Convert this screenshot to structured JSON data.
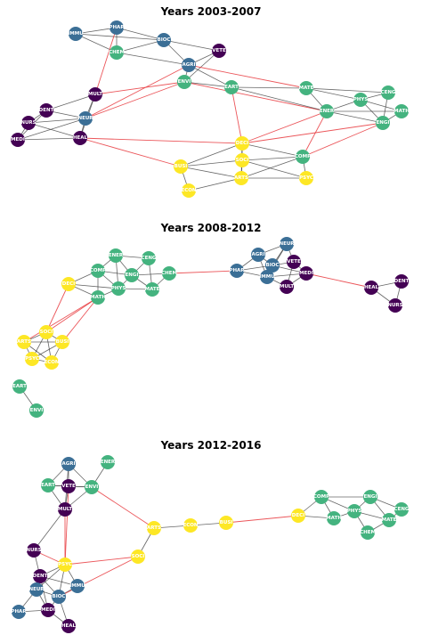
{
  "colors": {
    "field_group_a": "#44b37f",
    "field_group_b": "#fde725",
    "field_group_c": "#3b6f96",
    "field_group_d": "#440154",
    "edge_normal": "#333333",
    "edge_cross": "#e8383d"
  },
  "panels": [
    {
      "title": "Years 2003-2007",
      "nodes": [
        {
          "id": "IMMU",
          "group": "c"
        },
        {
          "id": "PHAR",
          "group": "c"
        },
        {
          "id": "BIOC",
          "group": "c"
        },
        {
          "id": "CHEM",
          "group": "a"
        },
        {
          "id": "VETE",
          "group": "d"
        },
        {
          "id": "AGRI",
          "group": "c"
        },
        {
          "id": "ENVI",
          "group": "a"
        },
        {
          "id": "EART",
          "group": "a"
        },
        {
          "id": "MULT",
          "group": "d"
        },
        {
          "id": "DENT",
          "group": "d"
        },
        {
          "id": "NURS",
          "group": "d"
        },
        {
          "id": "NEUR",
          "group": "c"
        },
        {
          "id": "MEDI",
          "group": "d"
        },
        {
          "id": "HEAL",
          "group": "d"
        },
        {
          "id": "MATE",
          "group": "a"
        },
        {
          "id": "CENG",
          "group": "a"
        },
        {
          "id": "PHYS",
          "group": "a"
        },
        {
          "id": "ENER",
          "group": "a"
        },
        {
          "id": "MATH",
          "group": "a"
        },
        {
          "id": "ENGI",
          "group": "a"
        },
        {
          "id": "DECI",
          "group": "b"
        },
        {
          "id": "COMP",
          "group": "a"
        },
        {
          "id": "SOCI",
          "group": "b"
        },
        {
          "id": "BUSI",
          "group": "b"
        },
        {
          "id": "ARTS",
          "group": "b"
        },
        {
          "id": "PSYC",
          "group": "b"
        },
        {
          "id": "ECON",
          "group": "b"
        }
      ],
      "edges": [
        [
          "IMMU",
          "PHAR",
          "n"
        ],
        [
          "IMMU",
          "BIOC",
          "n"
        ],
        [
          "IMMU",
          "CHEM",
          "n"
        ],
        [
          "PHAR",
          "BIOC",
          "n"
        ],
        [
          "PHAR",
          "CHEM",
          "n"
        ],
        [
          "BIOC",
          "CHEM",
          "n"
        ],
        [
          "BIOC",
          "VETE",
          "n"
        ],
        [
          "BIOC",
          "AGRI",
          "n"
        ],
        [
          "CHEM",
          "AGRI",
          "n"
        ],
        [
          "VETE",
          "AGRI",
          "n"
        ],
        [
          "AGRI",
          "ENVI",
          "n"
        ],
        [
          "VETE",
          "ENVI",
          "n"
        ],
        [
          "ENVI",
          "EART",
          "n"
        ],
        [
          "AGRI",
          "EART",
          "n"
        ],
        [
          "PHAR",
          "MULT",
          "x"
        ],
        [
          "MULT",
          "NEUR",
          "n"
        ],
        [
          "MULT",
          "DENT",
          "n"
        ],
        [
          "MULT",
          "HEAL",
          "n"
        ],
        [
          "DENT",
          "NURS",
          "n"
        ],
        [
          "DENT",
          "NEUR",
          "n"
        ],
        [
          "DENT",
          "MEDI",
          "n"
        ],
        [
          "NURS",
          "NEUR",
          "n"
        ],
        [
          "NURS",
          "MEDI",
          "n"
        ],
        [
          "NURS",
          "HEAL",
          "n"
        ],
        [
          "NEUR",
          "MEDI",
          "n"
        ],
        [
          "NEUR",
          "HEAL",
          "n"
        ],
        [
          "MEDI",
          "HEAL",
          "n"
        ],
        [
          "MULT",
          "ENVI",
          "x"
        ],
        [
          "NEUR",
          "ENVI",
          "x"
        ],
        [
          "NEUR",
          "AGRI",
          "x"
        ],
        [
          "EART",
          "MATE",
          "n"
        ],
        [
          "ENVI",
          "ENER",
          "x"
        ],
        [
          "AGRI",
          "MATE",
          "x"
        ],
        [
          "EART",
          "DECI",
          "x"
        ],
        [
          "EART",
          "ENER",
          "n"
        ],
        [
          "MATE",
          "PHYS",
          "n"
        ],
        [
          "MATE",
          "ENER",
          "n"
        ],
        [
          "MATE",
          "CENG",
          "n"
        ],
        [
          "CENG",
          "PHYS",
          "n"
        ],
        [
          "CENG",
          "ENGI",
          "n"
        ],
        [
          "PHYS",
          "ENER",
          "n"
        ],
        [
          "PHYS",
          "MATH",
          "n"
        ],
        [
          "PHYS",
          "ENGI",
          "n"
        ],
        [
          "ENER",
          "ENGI",
          "n"
        ],
        [
          "MATH",
          "ENGI",
          "n"
        ],
        [
          "ENER",
          "MATH",
          "n"
        ],
        [
          "HEAL",
          "DECI",
          "x"
        ],
        [
          "HEAL",
          "BUSI",
          "x"
        ],
        [
          "DECI",
          "SOCI",
          "n"
        ],
        [
          "DECI",
          "COMP",
          "n"
        ],
        [
          "DECI",
          "BUSI",
          "n"
        ],
        [
          "DECI",
          "ARTS",
          "n"
        ],
        [
          "COMP",
          "ENER",
          "x"
        ],
        [
          "COMP",
          "ENGI",
          "x"
        ],
        [
          "COMP",
          "PSYC",
          "n"
        ],
        [
          "COMP",
          "SOCI",
          "n"
        ],
        [
          "COMP",
          "ARTS",
          "n"
        ],
        [
          "SOCI",
          "ARTS",
          "n"
        ],
        [
          "SOCI",
          "BUSI",
          "n"
        ],
        [
          "SOCI",
          "PSYC",
          "n"
        ],
        [
          "ARTS",
          "PSYC",
          "n"
        ],
        [
          "ARTS",
          "ECON",
          "n"
        ],
        [
          "BUSI",
          "ECON",
          "n"
        ],
        [
          "BUSI",
          "ARTS",
          "n"
        ],
        [
          "DECI",
          "ENER",
          "x"
        ],
        [
          "DECI",
          "ENGI",
          "x"
        ]
      ]
    },
    {
      "title": "Years 2008-2012",
      "nodes": [
        {
          "id": "ENER",
          "group": "a"
        },
        {
          "id": "CENG",
          "group": "a"
        },
        {
          "id": "COMP",
          "group": "a"
        },
        {
          "id": "ENGI",
          "group": "a"
        },
        {
          "id": "CHEM",
          "group": "a"
        },
        {
          "id": "DECI",
          "group": "b"
        },
        {
          "id": "PHYS",
          "group": "a"
        },
        {
          "id": "MATE",
          "group": "a"
        },
        {
          "id": "MATH",
          "group": "a"
        },
        {
          "id": "PHAR",
          "group": "c"
        },
        {
          "id": "AGRI",
          "group": "c"
        },
        {
          "id": "NEUR",
          "group": "c"
        },
        {
          "id": "BIOC",
          "group": "c"
        },
        {
          "id": "VETE",
          "group": "d"
        },
        {
          "id": "IMMU",
          "group": "c"
        },
        {
          "id": "MEDI",
          "group": "d"
        },
        {
          "id": "MULT",
          "group": "d"
        },
        {
          "id": "HEAL",
          "group": "d"
        },
        {
          "id": "DENT",
          "group": "d"
        },
        {
          "id": "NURS",
          "group": "d"
        },
        {
          "id": "SOCI",
          "group": "b"
        },
        {
          "id": "ARTS",
          "group": "b"
        },
        {
          "id": "BUSI",
          "group": "b"
        },
        {
          "id": "PSYC",
          "group": "b"
        },
        {
          "id": "ECON",
          "group": "b"
        },
        {
          "id": "EART",
          "group": "a"
        },
        {
          "id": "ENVI",
          "group": "a"
        }
      ],
      "edges": [
        [
          "ENER",
          "CENG",
          "n"
        ],
        [
          "ENER",
          "COMP",
          "n"
        ],
        [
          "ENER",
          "ENGI",
          "n"
        ],
        [
          "ENER",
          "PHYS",
          "n"
        ],
        [
          "CENG",
          "ENGI",
          "n"
        ],
        [
          "CENG",
          "MATE",
          "n"
        ],
        [
          "COMP",
          "ENGI",
          "n"
        ],
        [
          "COMP",
          "PHYS",
          "n"
        ],
        [
          "COMP",
          "MATH",
          "n"
        ],
        [
          "COMP",
          "DECI",
          "n"
        ],
        [
          "ENGI",
          "PHYS",
          "n"
        ],
        [
          "ENGI",
          "MATE",
          "n"
        ],
        [
          "ENGI",
          "CHEM",
          "n"
        ],
        [
          "CHEM",
          "MATE",
          "n"
        ],
        [
          "PHYS",
          "MATE",
          "n"
        ],
        [
          "PHYS",
          "MATH",
          "n"
        ],
        [
          "DECI",
          "MATH",
          "n"
        ],
        [
          "DECI",
          "PHYS",
          "n"
        ],
        [
          "CHEM",
          "PHAR",
          "x"
        ],
        [
          "PHAR",
          "AGRI",
          "n"
        ],
        [
          "PHAR",
          "BIOC",
          "n"
        ],
        [
          "PHAR",
          "IMMU",
          "n"
        ],
        [
          "AGRI",
          "NEUR",
          "n"
        ],
        [
          "AGRI",
          "BIOC",
          "n"
        ],
        [
          "AGRI",
          "IMMU",
          "n"
        ],
        [
          "NEUR",
          "BIOC",
          "n"
        ],
        [
          "NEUR",
          "VETE",
          "n"
        ],
        [
          "NEUR",
          "IMMU",
          "n"
        ],
        [
          "BIOC",
          "VETE",
          "n"
        ],
        [
          "BIOC",
          "IMMU",
          "n"
        ],
        [
          "BIOC",
          "MEDI",
          "n"
        ],
        [
          "VETE",
          "MEDI",
          "n"
        ],
        [
          "VETE",
          "MULT",
          "n"
        ],
        [
          "IMMU",
          "MULT",
          "n"
        ],
        [
          "IMMU",
          "MEDI",
          "n"
        ],
        [
          "MULT",
          "MEDI",
          "n"
        ],
        [
          "MEDI",
          "HEAL",
          "x"
        ],
        [
          "HEAL",
          "DENT",
          "n"
        ],
        [
          "HEAL",
          "NURS",
          "n"
        ],
        [
          "DENT",
          "NURS",
          "n"
        ],
        [
          "DECI",
          "SOCI",
          "x"
        ],
        [
          "MATH",
          "SOCI",
          "x"
        ],
        [
          "MATH",
          "BUSI",
          "x"
        ],
        [
          "MATH",
          "ARTS",
          "x"
        ],
        [
          "SOCI",
          "ARTS",
          "n"
        ],
        [
          "SOCI",
          "BUSI",
          "n"
        ],
        [
          "SOCI",
          "PSYC",
          "n"
        ],
        [
          "SOCI",
          "ECON",
          "n"
        ],
        [
          "ARTS",
          "BUSI",
          "n"
        ],
        [
          "ARTS",
          "PSYC",
          "n"
        ],
        [
          "ARTS",
          "ECON",
          "n"
        ],
        [
          "BUSI",
          "PSYC",
          "n"
        ],
        [
          "BUSI",
          "ECON",
          "n"
        ],
        [
          "PSYC",
          "ECON",
          "n"
        ],
        [
          "EART",
          "ENVI",
          "n"
        ]
      ]
    },
    {
      "title": "Years 2012-2016",
      "nodes": [
        {
          "id": "AGRI",
          "group": "c"
        },
        {
          "id": "ENER",
          "group": "a"
        },
        {
          "id": "EART",
          "group": "a"
        },
        {
          "id": "VETE",
          "group": "d"
        },
        {
          "id": "ENVI",
          "group": "a"
        },
        {
          "id": "MULT",
          "group": "d"
        },
        {
          "id": "NURS",
          "group": "d"
        },
        {
          "id": "DENT",
          "group": "d"
        },
        {
          "id": "PSYC",
          "group": "b"
        },
        {
          "id": "SOCI",
          "group": "b"
        },
        {
          "id": "NEUR",
          "group": "c"
        },
        {
          "id": "IMMU",
          "group": "c"
        },
        {
          "id": "BIOC",
          "group": "c"
        },
        {
          "id": "PHAR",
          "group": "c"
        },
        {
          "id": "MEDI",
          "group": "d"
        },
        {
          "id": "HEAL",
          "group": "d"
        },
        {
          "id": "ARTS",
          "group": "b"
        },
        {
          "id": "ECON",
          "group": "b"
        },
        {
          "id": "BUSI",
          "group": "b"
        },
        {
          "id": "DECI",
          "group": "b"
        },
        {
          "id": "COMP",
          "group": "a"
        },
        {
          "id": "MATH",
          "group": "a"
        },
        {
          "id": "PHYS",
          "group": "a"
        },
        {
          "id": "ENGI",
          "group": "a"
        },
        {
          "id": "CENG",
          "group": "a"
        },
        {
          "id": "MATE",
          "group": "a"
        },
        {
          "id": "CHEM",
          "group": "a"
        }
      ],
      "edges": [
        [
          "AGRI",
          "EART",
          "n"
        ],
        [
          "AGRI",
          "VETE",
          "n"
        ],
        [
          "AGRI",
          "ENVI",
          "n"
        ],
        [
          "AGRI",
          "MULT",
          "n"
        ],
        [
          "ENER",
          "ENVI",
          "n"
        ],
        [
          "EART",
          "VETE",
          "n"
        ],
        [
          "EART",
          "ENVI",
          "n"
        ],
        [
          "EART",
          "MULT",
          "n"
        ],
        [
          "VETE",
          "ENVI",
          "n"
        ],
        [
          "VETE",
          "MULT",
          "n"
        ],
        [
          "ENVI",
          "MULT",
          "n"
        ],
        [
          "ENVI",
          "ARTS",
          "x"
        ],
        [
          "MULT",
          "NURS",
          "n"
        ],
        [
          "MULT",
          "PSYC",
          "x"
        ],
        [
          "VETE",
          "PSYC",
          "x"
        ],
        [
          "NURS",
          "DENT",
          "n"
        ],
        [
          "NURS",
          "PSYC",
          "x"
        ],
        [
          "DENT",
          "PSYC",
          "n"
        ],
        [
          "DENT",
          "NEUR",
          "n"
        ],
        [
          "DENT",
          "BIOC",
          "n"
        ],
        [
          "DENT",
          "MEDI",
          "n"
        ],
        [
          "DENT",
          "IMMU",
          "n"
        ],
        [
          "PSYC",
          "SOCI",
          "x"
        ],
        [
          "PSYC",
          "NEUR",
          "n"
        ],
        [
          "PSYC",
          "BIOC",
          "n"
        ],
        [
          "PSYC",
          "IMMU",
          "n"
        ],
        [
          "NEUR",
          "BIOC",
          "n"
        ],
        [
          "NEUR",
          "MEDI",
          "n"
        ],
        [
          "NEUR",
          "PHAR",
          "n"
        ],
        [
          "BIOC",
          "IMMU",
          "n"
        ],
        [
          "BIOC",
          "MEDI",
          "n"
        ],
        [
          "BIOC",
          "HEAL",
          "n"
        ],
        [
          "MEDI",
          "PHAR",
          "n"
        ],
        [
          "MEDI",
          "HEAL",
          "n"
        ],
        [
          "SOCI",
          "ARTS",
          "n"
        ],
        [
          "SOCI",
          "BIOC",
          "x"
        ],
        [
          "ARTS",
          "ECON",
          "n"
        ],
        [
          "ECON",
          "BUSI",
          "n"
        ],
        [
          "BUSI",
          "DECI",
          "x"
        ],
        [
          "DECI",
          "MATH",
          "n"
        ],
        [
          "DECI",
          "COMP",
          "n"
        ],
        [
          "COMP",
          "MATH",
          "n"
        ],
        [
          "COMP",
          "PHYS",
          "n"
        ],
        [
          "COMP",
          "ENGI",
          "n"
        ],
        [
          "MATH",
          "PHYS",
          "n"
        ],
        [
          "PHYS",
          "ENGI",
          "n"
        ],
        [
          "PHYS",
          "MATE",
          "n"
        ],
        [
          "PHYS",
          "CHEM",
          "n"
        ],
        [
          "ENGI",
          "CENG",
          "n"
        ],
        [
          "ENGI",
          "MATE",
          "n"
        ],
        [
          "CENG",
          "MATE",
          "n"
        ],
        [
          "MATE",
          "CHEM",
          "n"
        ]
      ]
    }
  ]
}
